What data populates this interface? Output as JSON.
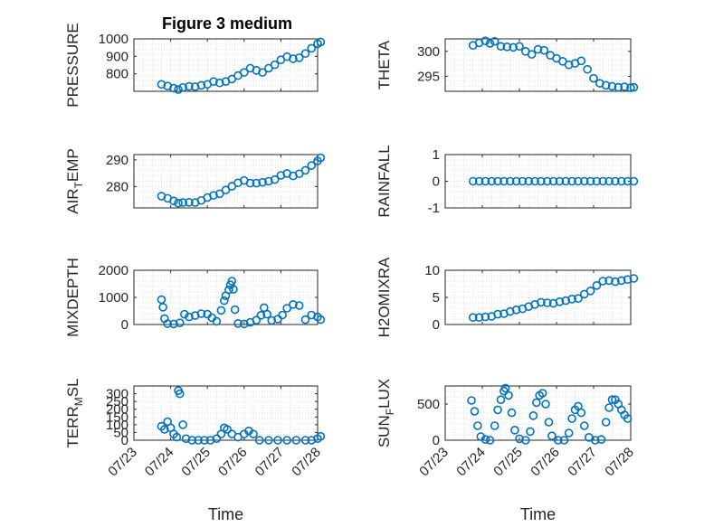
{
  "figure": {
    "title": "Figure 3 medium",
    "marker_color": "#0072bd"
  },
  "chart_data": [
    {
      "type": "scatter",
      "title": "Figure 3 medium",
      "ylabel": "PRESSURE",
      "ylabel_sub": "",
      "ylim": [
        700,
        1000
      ],
      "yticks": [
        800,
        900,
        1000
      ],
      "yticklabels": [
        "800",
        "900",
        "1000"
      ],
      "xlim": [
        "07/23",
        "07/28"
      ],
      "show_x_ticklabels": false,
      "xlabel": "",
      "points": [
        [
          "07/23 18:00",
          740
        ],
        [
          "07/23 22:00",
          730
        ],
        [
          "07/24 02:00",
          718
        ],
        [
          "07/24 05:00",
          710
        ],
        [
          "07/24 08:00",
          722
        ],
        [
          "07/24 12:00",
          728
        ],
        [
          "07/24 16:00",
          726
        ],
        [
          "07/24 20:00",
          734
        ],
        [
          "07/25 00:00",
          740
        ],
        [
          "07/25 04:00",
          756
        ],
        [
          "07/25 08:00",
          748
        ],
        [
          "07/25 12:00",
          756
        ],
        [
          "07/25 16:00",
          770
        ],
        [
          "07/25 20:00",
          790
        ],
        [
          "07/26 00:00",
          808
        ],
        [
          "07/26 04:00",
          832
        ],
        [
          "07/26 08:00",
          820
        ],
        [
          "07/26 12:00",
          808
        ],
        [
          "07/26 16:00",
          832
        ],
        [
          "07/26 20:00",
          852
        ],
        [
          "07/27 00:00",
          880
        ],
        [
          "07/27 04:00",
          898
        ],
        [
          "07/27 08:00",
          886
        ],
        [
          "07/27 12:00",
          892
        ],
        [
          "07/27 16:00",
          916
        ],
        [
          "07/27 20:00",
          946
        ],
        [
          "07/28 00:00",
          972
        ],
        [
          "07/28 02:00",
          982
        ]
      ]
    },
    {
      "type": "scatter",
      "title": "",
      "ylabel": "THETA",
      "ylabel_sub": "",
      "ylim": [
        292,
        302.5
      ],
      "yticks": [
        295,
        300
      ],
      "yticklabels": [
        "295",
        "300"
      ],
      "xlim": [
        "07/23",
        "07/28"
      ],
      "show_x_ticklabels": false,
      "xlabel": "",
      "points": [
        [
          "07/23 18:00",
          301.2
        ],
        [
          "07/23 22:00",
          301.7
        ],
        [
          "07/24 02:00",
          302.1
        ],
        [
          "07/24 05:00",
          301.6
        ],
        [
          "07/24 08:00",
          302.0
        ],
        [
          "07/24 12:00",
          301.0
        ],
        [
          "07/24 16:00",
          300.9
        ],
        [
          "07/24 20:00",
          300.8
        ],
        [
          "07/25 00:00",
          301.0
        ],
        [
          "07/25 04:00",
          300.0
        ],
        [
          "07/25 08:00",
          299.4
        ],
        [
          "07/25 12:00",
          300.4
        ],
        [
          "07/25 16:00",
          300.2
        ],
        [
          "07/25 20:00",
          299.2
        ],
        [
          "07/26 00:00",
          298.6
        ],
        [
          "07/26 04:00",
          298.0
        ],
        [
          "07/26 08:00",
          297.3
        ],
        [
          "07/26 12:00",
          297.6
        ],
        [
          "07/26 16:00",
          298.1
        ],
        [
          "07/26 20:00",
          296.4
        ],
        [
          "07/27 00:00",
          294.6
        ],
        [
          "07/27 04:00",
          293.6
        ],
        [
          "07/27 08:00",
          293.2
        ],
        [
          "07/27 12:00",
          293.0
        ],
        [
          "07/27 16:00",
          292.8
        ],
        [
          "07/27 20:00",
          292.9
        ],
        [
          "07/28 00:00",
          292.7
        ],
        [
          "07/28 02:00",
          292.8
        ]
      ]
    },
    {
      "type": "scatter",
      "title": "",
      "ylabel": "AIR",
      "ylabel_sub": "T",
      "ylabel_suffix": "EMP",
      "ylim": [
        272,
        292
      ],
      "yticks": [
        280,
        290
      ],
      "yticklabels": [
        "280",
        "290"
      ],
      "xlim": [
        "07/23",
        "07/28"
      ],
      "show_x_ticklabels": false,
      "xlabel": "",
      "points": [
        [
          "07/23 18:00",
          276.4
        ],
        [
          "07/23 22:00",
          275.6
        ],
        [
          "07/24 02:00",
          274.6
        ],
        [
          "07/24 05:00",
          273.8
        ],
        [
          "07/24 08:00",
          274.0
        ],
        [
          "07/24 12:00",
          274.1
        ],
        [
          "07/24 16:00",
          274.0
        ],
        [
          "07/24 20:00",
          274.8
        ],
        [
          "07/25 00:00",
          275.9
        ],
        [
          "07/25 04:00",
          276.7
        ],
        [
          "07/25 08:00",
          277.3
        ],
        [
          "07/25 12:00",
          278.7
        ],
        [
          "07/25 16:00",
          280.1
        ],
        [
          "07/25 20:00",
          281.4
        ],
        [
          "07/26 00:00",
          282.3
        ],
        [
          "07/26 04:00",
          281.3
        ],
        [
          "07/26 08:00",
          281.3
        ],
        [
          "07/26 12:00",
          281.6
        ],
        [
          "07/26 16:00",
          282.0
        ],
        [
          "07/26 20:00",
          282.6
        ],
        [
          "07/27 00:00",
          284.2
        ],
        [
          "07/27 04:00",
          284.9
        ],
        [
          "07/27 08:00",
          284.0
        ],
        [
          "07/27 12:00",
          284.8
        ],
        [
          "07/27 16:00",
          286.1
        ],
        [
          "07/27 20:00",
          287.9
        ],
        [
          "07/28 00:00",
          289.6
        ],
        [
          "07/28 02:00",
          290.8
        ]
      ]
    },
    {
      "type": "scatter",
      "title": "",
      "ylabel": "RAINFALL",
      "ylabel_sub": "",
      "ylim": [
        -1,
        1
      ],
      "yticks": [
        -1,
        0,
        1
      ],
      "yticklabels": [
        "-1",
        "0",
        "1"
      ],
      "xlim": [
        "07/23",
        "07/28"
      ],
      "show_x_ticklabels": false,
      "xlabel": "",
      "points": [
        [
          "07/23 18:00",
          0
        ],
        [
          "07/23 22:00",
          0
        ],
        [
          "07/24 02:00",
          0
        ],
        [
          "07/24 06:00",
          0
        ],
        [
          "07/24 10:00",
          0
        ],
        [
          "07/24 14:00",
          0
        ],
        [
          "07/24 18:00",
          0
        ],
        [
          "07/24 22:00",
          0
        ],
        [
          "07/25 02:00",
          0
        ],
        [
          "07/25 06:00",
          0
        ],
        [
          "07/25 10:00",
          0
        ],
        [
          "07/25 14:00",
          0
        ],
        [
          "07/25 18:00",
          0
        ],
        [
          "07/25 22:00",
          0
        ],
        [
          "07/26 02:00",
          0
        ],
        [
          "07/26 06:00",
          0
        ],
        [
          "07/26 10:00",
          0
        ],
        [
          "07/26 14:00",
          0
        ],
        [
          "07/26 18:00",
          0
        ],
        [
          "07/26 22:00",
          0
        ],
        [
          "07/27 02:00",
          0
        ],
        [
          "07/27 06:00",
          0
        ],
        [
          "07/27 10:00",
          0
        ],
        [
          "07/27 14:00",
          0
        ],
        [
          "07/27 18:00",
          0
        ],
        [
          "07/27 22:00",
          0
        ],
        [
          "07/28 02:00",
          0
        ]
      ]
    },
    {
      "type": "scatter",
      "title": "",
      "ylabel": "MIXDEPTH",
      "ylabel_sub": "",
      "ylim": [
        0,
        2000
      ],
      "yticks": [
        0,
        1000,
        2000
      ],
      "yticklabels": [
        "0",
        "1000",
        "2000"
      ],
      "xlim": [
        "07/23",
        "07/28"
      ],
      "show_x_ticklabels": false,
      "xlabel": "",
      "points": [
        [
          "07/23 18:00",
          920
        ],
        [
          "07/23 19:00",
          640
        ],
        [
          "07/23 20:00",
          220
        ],
        [
          "07/23 22:00",
          30
        ],
        [
          "07/24 02:00",
          20
        ],
        [
          "07/24 06:00",
          60
        ],
        [
          "07/24 09:00",
          380
        ],
        [
          "07/24 12:00",
          280
        ],
        [
          "07/24 16:00",
          330
        ],
        [
          "07/24 20:00",
          400
        ],
        [
          "07/25 00:00",
          380
        ],
        [
          "07/25 03:00",
          250
        ],
        [
          "07/25 06:00",
          120
        ],
        [
          "07/25 09:00",
          520
        ],
        [
          "07/25 11:00",
          880
        ],
        [
          "07/25 12:00",
          1060
        ],
        [
          "07/25 14:00",
          1280
        ],
        [
          "07/25 15:00",
          1460
        ],
        [
          "07/25 16:00",
          1600
        ],
        [
          "07/25 17:00",
          1300
        ],
        [
          "07/25 18:00",
          550
        ],
        [
          "07/25 20:00",
          40
        ],
        [
          "07/26 00:00",
          20
        ],
        [
          "07/26 04:00",
          80
        ],
        [
          "07/26 08:00",
          160
        ],
        [
          "07/26 11:00",
          340
        ],
        [
          "07/26 13:00",
          620
        ],
        [
          "07/26 15:00",
          380
        ],
        [
          "07/26 18:00",
          150
        ],
        [
          "07/26 22:00",
          200
        ],
        [
          "07/27 01:00",
          350
        ],
        [
          "07/27 04:00",
          600
        ],
        [
          "07/27 08:00",
          740
        ],
        [
          "07/27 12:00",
          700
        ],
        [
          "07/27 16:00",
          180
        ],
        [
          "07/27 20:00",
          350
        ],
        [
          "07/28 00:00",
          280
        ],
        [
          "07/28 02:00",
          180
        ]
      ]
    },
    {
      "type": "scatter",
      "title": "",
      "ylabel": "H2OMIXRA",
      "ylabel_sub": "",
      "ylim": [
        0,
        10
      ],
      "yticks": [
        0,
        5,
        10
      ],
      "yticklabels": [
        "0",
        "5",
        "10"
      ],
      "xlim": [
        "07/23",
        "07/28"
      ],
      "show_x_ticklabels": false,
      "xlabel": "",
      "points": [
        [
          "07/23 18:00",
          1.3
        ],
        [
          "07/23 22:00",
          1.3
        ],
        [
          "07/24 02:00",
          1.4
        ],
        [
          "07/24 06:00",
          1.5
        ],
        [
          "07/24 10:00",
          1.9
        ],
        [
          "07/24 14:00",
          2.0
        ],
        [
          "07/24 18:00",
          2.4
        ],
        [
          "07/24 22:00",
          2.7
        ],
        [
          "07/25 02:00",
          2.9
        ],
        [
          "07/25 06:00",
          3.3
        ],
        [
          "07/25 10:00",
          3.7
        ],
        [
          "07/25 14:00",
          4.1
        ],
        [
          "07/25 18:00",
          4.0
        ],
        [
          "07/25 22:00",
          3.9
        ],
        [
          "07/26 02:00",
          4.2
        ],
        [
          "07/26 06:00",
          4.4
        ],
        [
          "07/26 10:00",
          4.7
        ],
        [
          "07/26 14:00",
          4.8
        ],
        [
          "07/26 18:00",
          5.6
        ],
        [
          "07/26 22:00",
          6.2
        ],
        [
          "07/27 02:00",
          7.2
        ],
        [
          "07/27 06:00",
          8.0
        ],
        [
          "07/27 10:00",
          8.1
        ],
        [
          "07/27 14:00",
          7.9
        ],
        [
          "07/27 18:00",
          8.1
        ],
        [
          "07/27 22:00",
          8.3
        ],
        [
          "07/28 02:00",
          8.5
        ]
      ]
    },
    {
      "type": "scatter",
      "title": "",
      "ylabel": "TERR",
      "ylabel_sub": "M",
      "ylabel_suffix": "SL",
      "ylim": [
        0,
        350
      ],
      "yticks": [
        0,
        50,
        100,
        150,
        200,
        250,
        300
      ],
      "yticklabels": [
        "0",
        "50",
        "100",
        "150",
        "200",
        "250",
        "300"
      ],
      "xlim": [
        "07/23",
        "07/28"
      ],
      "show_x_ticklabels": true,
      "xlabel": "Time",
      "xticklabels": [
        "07/23",
        "07/24",
        "07/25",
        "07/26",
        "07/27",
        "07/28"
      ],
      "points": [
        [
          "07/23 18:00",
          90
        ],
        [
          "07/23 20:00",
          70
        ],
        [
          "07/23 22:00",
          120
        ],
        [
          "07/24 00:00",
          80
        ],
        [
          "07/24 02:00",
          40
        ],
        [
          "07/24 04:00",
          20
        ],
        [
          "07/24 05:00",
          320
        ],
        [
          "07/24 06:00",
          300
        ],
        [
          "07/24 08:00",
          100
        ],
        [
          "07/24 10:00",
          10
        ],
        [
          "07/24 14:00",
          0
        ],
        [
          "07/24 18:00",
          0
        ],
        [
          "07/24 22:00",
          0
        ],
        [
          "07/25 02:00",
          0
        ],
        [
          "07/25 06:00",
          10
        ],
        [
          "07/25 09:00",
          40
        ],
        [
          "07/25 11:00",
          80
        ],
        [
          "07/25 13:00",
          70
        ],
        [
          "07/25 16:00",
          40
        ],
        [
          "07/25 20:00",
          20
        ],
        [
          "07/26 00:00",
          40
        ],
        [
          "07/26 03:00",
          60
        ],
        [
          "07/26 06:00",
          40
        ],
        [
          "07/26 10:00",
          0
        ],
        [
          "07/26 16:00",
          0
        ],
        [
          "07/26 22:00",
          0
        ],
        [
          "07/27 04:00",
          0
        ],
        [
          "07/27 10:00",
          0
        ],
        [
          "07/27 16:00",
          0
        ],
        [
          "07/27 20:00",
          0
        ],
        [
          "07/28 00:00",
          10
        ],
        [
          "07/28 02:00",
          25
        ]
      ]
    },
    {
      "type": "scatter",
      "title": "",
      "ylabel": "SUN",
      "ylabel_sub": "F",
      "ylabel_suffix": "LUX",
      "ylim": [
        0,
        750
      ],
      "yticks": [
        0,
        500
      ],
      "yticklabels": [
        "0",
        "500"
      ],
      "xlim": [
        "07/23",
        "07/28"
      ],
      "show_x_ticklabels": true,
      "xlabel": "Time",
      "xticklabels": [
        "07/23",
        "07/24",
        "07/25",
        "07/26",
        "07/27",
        "07/28"
      ],
      "points": [
        [
          "07/23 17:00",
          550
        ],
        [
          "07/23 19:00",
          400
        ],
        [
          "07/23 21:00",
          200
        ],
        [
          "07/23 23:00",
          50
        ],
        [
          "07/24 02:00",
          10
        ],
        [
          "07/24 05:00",
          0
        ],
        [
          "07/24 08:00",
          200
        ],
        [
          "07/24 10:00",
          420
        ],
        [
          "07/24 12:00",
          560
        ],
        [
          "07/24 14:00",
          680
        ],
        [
          "07/24 15:00",
          720
        ],
        [
          "07/24 17:00",
          620
        ],
        [
          "07/24 19:00",
          380
        ],
        [
          "07/24 21:00",
          140
        ],
        [
          "07/25 00:00",
          20
        ],
        [
          "07/25 04:00",
          0
        ],
        [
          "07/25 07:00",
          120
        ],
        [
          "07/25 09:00",
          340
        ],
        [
          "07/25 11:00",
          520
        ],
        [
          "07/25 13:00",
          620
        ],
        [
          "07/25 15:00",
          650
        ],
        [
          "07/25 17:00",
          500
        ],
        [
          "07/25 19:00",
          250
        ],
        [
          "07/25 21:00",
          60
        ],
        [
          "07/26 01:00",
          0
        ],
        [
          "07/26 05:00",
          0
        ],
        [
          "07/26 08:00",
          100
        ],
        [
          "07/26 10:00",
          300
        ],
        [
          "07/26 12:00",
          420
        ],
        [
          "07/26 14:00",
          470
        ],
        [
          "07/26 16:00",
          380
        ],
        [
          "07/26 18:00",
          200
        ],
        [
          "07/26 21:00",
          40
        ],
        [
          "07/27 01:00",
          0
        ],
        [
          "07/27 05:00",
          10
        ],
        [
          "07/27 08:00",
          250
        ],
        [
          "07/27 10:00",
          450
        ],
        [
          "07/27 12:00",
          560
        ],
        [
          "07/27 14:00",
          560
        ],
        [
          "07/27 16:00",
          500
        ],
        [
          "07/27 18:00",
          420
        ],
        [
          "07/27 20:00",
          350
        ],
        [
          "07/27 22:00",
          300
        ]
      ]
    }
  ]
}
